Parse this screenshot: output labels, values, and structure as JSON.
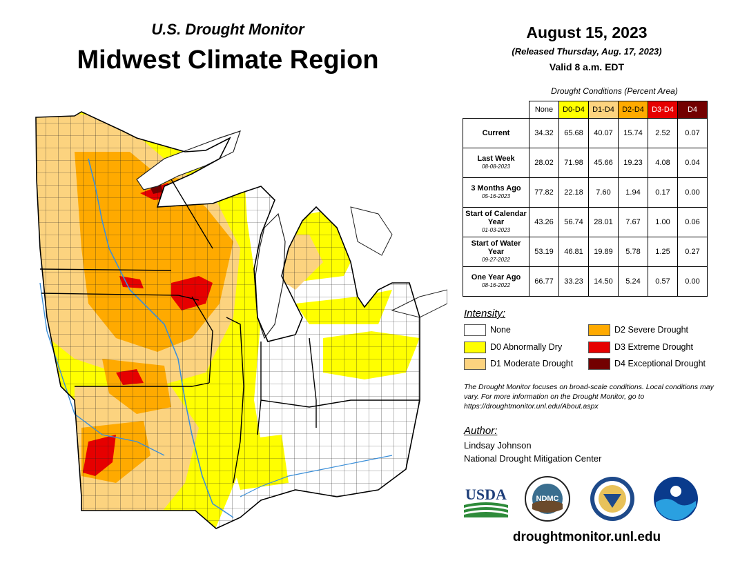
{
  "header": {
    "subtitle": "U.S. Drought Monitor",
    "title": "Midwest Climate Region",
    "date": "August 15, 2023",
    "released": "(Released Thursday, Aug. 17, 2023)",
    "valid": "Valid 8 a.m. EDT"
  },
  "table": {
    "caption": "Drought Conditions (Percent Area)",
    "columns": [
      "None",
      "D0-D4",
      "D1-D4",
      "D2-D4",
      "D3-D4",
      "D4"
    ],
    "column_colors": [
      "#ffffff",
      "#ffff00",
      "#fcd37f",
      "#ffaa00",
      "#e60000",
      "#730000"
    ],
    "rows": [
      {
        "label": "Current",
        "sub": "",
        "values": [
          "34.32",
          "65.68",
          "40.07",
          "15.74",
          "2.52",
          "0.07"
        ]
      },
      {
        "label": "Last Week",
        "sub": "08-08-2023",
        "values": [
          "28.02",
          "71.98",
          "45.66",
          "19.23",
          "4.08",
          "0.04"
        ]
      },
      {
        "label": "3 Months Ago",
        "sub": "05-16-2023",
        "values": [
          "77.82",
          "22.18",
          "7.60",
          "1.94",
          "0.17",
          "0.00"
        ]
      },
      {
        "label": "Start of Calendar Year",
        "sub": "01-03-2023",
        "values": [
          "43.26",
          "56.74",
          "28.01",
          "7.67",
          "1.00",
          "0.06"
        ]
      },
      {
        "label": "Start of Water Year",
        "sub": "09-27-2022",
        "values": [
          "53.19",
          "46.81",
          "19.89",
          "5.78",
          "1.25",
          "0.27"
        ]
      },
      {
        "label": "One Year Ago",
        "sub": "08-16-2022",
        "values": [
          "66.77",
          "33.23",
          "14.50",
          "5.24",
          "0.57",
          "0.00"
        ]
      }
    ]
  },
  "legend": {
    "title": "Intensity:",
    "items": [
      {
        "label": "None",
        "color": "#ffffff"
      },
      {
        "label": "D0 Abnormally Dry",
        "color": "#ffff00"
      },
      {
        "label": "D1 Moderate Drought",
        "color": "#fcd37f"
      },
      {
        "label": "D2 Severe Drought",
        "color": "#ffaa00"
      },
      {
        "label": "D3 Extreme Drought",
        "color": "#e60000"
      },
      {
        "label": "D4 Exceptional Drought",
        "color": "#730000"
      }
    ]
  },
  "note": "The Drought Monitor focuses on broad-scale conditions. Local conditions may vary. For more information on the Drought Monitor, go to https://droughtmonitor.unl.edu/About.aspx",
  "author": {
    "title": "Author:",
    "name": "Lindsay Johnson",
    "org": "National Drought Mitigation Center"
  },
  "logos": {
    "usda": "USDA",
    "ndmc": "NDMC",
    "icons": [
      "usda-logo-icon",
      "ndmc-logo-icon",
      "commerce-seal-icon",
      "noaa-logo-icon"
    ]
  },
  "url": "droughtmonitor.unl.edu",
  "colors": {
    "water": "#7fb8e6",
    "river": "#3b8fd9",
    "county_line": "#222222"
  }
}
